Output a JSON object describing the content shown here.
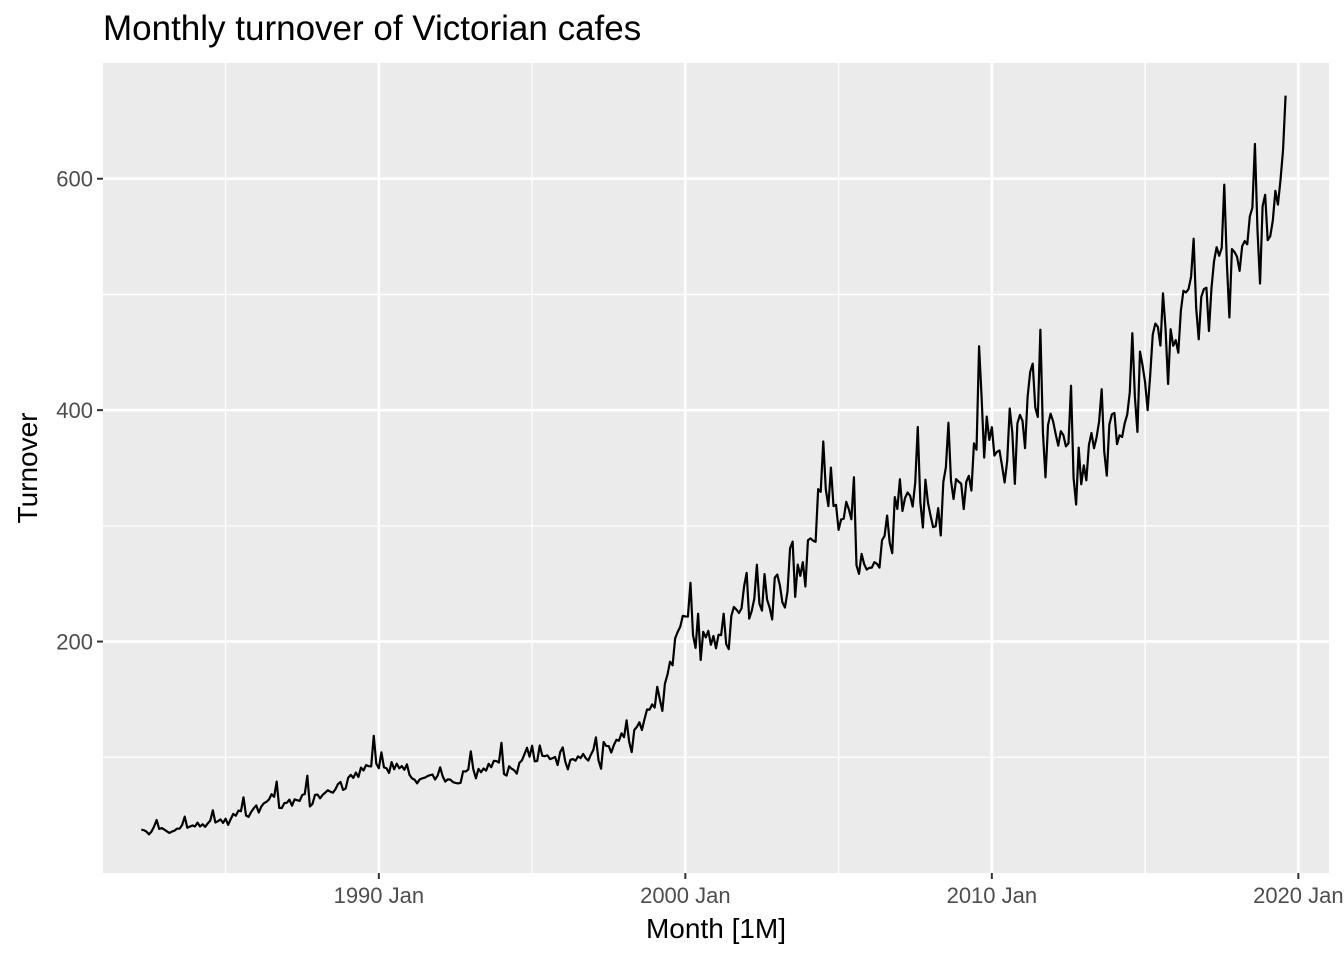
{
  "chart_data": {
    "type": "line",
    "title": "Monthly turnover of Victorian cafes",
    "xlabel": "Month [1M]",
    "ylabel": "Turnover",
    "x_start": "1982 Apr",
    "x_frequency": "monthly",
    "xlim": [
      "1981 Jan",
      "2021 Jan"
    ],
    "ylim": [
      0,
      700
    ],
    "x_ticks": [
      {
        "date": "1990 Jan",
        "label": "1990 Jan"
      },
      {
        "date": "2000 Jan",
        "label": "2000 Jan"
      },
      {
        "date": "2010 Jan",
        "label": "2010 Jan"
      },
      {
        "date": "2020 Jan",
        "label": "2020 Jan"
      }
    ],
    "x_minor_ticks": [
      "1985 Jan",
      "1995 Jan",
      "2005 Jan",
      "2015 Jan"
    ],
    "y_ticks": [
      200,
      400,
      600
    ],
    "y_minor_ticks": [
      100,
      300,
      500
    ],
    "grid": true,
    "background": "#ebebeb",
    "line_color": "#000000",
    "series": [
      {
        "values": [
          37.4,
          37,
          35.8,
          33.4,
          35.9,
          40.2,
          45.8,
          38.1,
          38.8,
          37.6,
          36,
          34.6,
          35.8,
          36.6,
          38.3,
          38.4,
          41.6,
          48.7,
          39.1,
          40.1,
          41.1,
          40.2,
          43.5,
          40.2,
          42.1,
          39.9,
          42.8,
          45.3,
          54.2,
          43.6,
          44.8,
          46.3,
          43.3,
          46.9,
          41.6,
          46.6,
          51.1,
          49.5,
          53.9,
          53.4,
          65.4,
          49.7,
          48.5,
          52.7,
          55.9,
          58.4,
          52.3,
          57.5,
          60.3,
          61.5,
          63.6,
          68.1,
          65.8,
          79,
          56.3,
          56.1,
          60.4,
          60.8,
          63.4,
          58.2,
          63.6,
          62.9,
          62.3,
          67.4,
          68.2,
          84.1,
          57.5,
          59.7,
          67.5,
          67.8,
          64.5,
          67.5,
          69.4,
          71.5,
          70.3,
          69.4,
          72.4,
          76.8,
          78.7,
          71.8,
          73,
          82.3,
          84.8,
          82.2,
          86.8,
          83,
          91.1,
          88.6,
          93.2,
          92.3,
          92.1,
          118.5,
          94.5,
          90.6,
          104.3,
          91.3,
          90.5,
          86.5,
          95.8,
          89.7,
          94.5,
          90.5,
          92.4,
          89.2,
          93.9,
          84.8,
          81.8,
          80.6,
          77.5,
          80.9,
          81.8,
          82.4,
          83.7,
          84.5,
          85.1,
          80.8,
          84.1,
          91.3,
          83.6,
          79,
          80.9,
          80.7,
          78.6,
          77.8,
          77.4,
          77.9,
          87.9,
          87.7,
          89.3,
          105.1,
          89.5,
          81.8,
          90,
          87.1,
          90.3,
          88.5,
          94.4,
          91.4,
          96.9,
          96.7,
          95.4,
          112.5,
          85.5,
          84.2,
          92.2,
          90.1,
          88.7,
          85.9,
          95.1,
          97.3,
          102.6,
          108.2,
          100.5,
          110,
          96.6,
          96.8,
          110.2,
          101.2,
          101,
          101.7,
          98.4,
          99.2,
          100.3,
          93.3,
          104.5,
          108.5,
          96.2,
          89.6,
          97.8,
          98.5,
          97.1,
          100.8,
          99.3,
          102.9,
          99.2,
          97.1,
          102.2,
          106.5,
          117.2,
          97.4,
          90.1,
          113.2,
          109.8,
          109.7,
          104.1,
          110.5,
          115.1,
          114.3,
          120.7,
          117.4,
          131.9,
          113.4,
          104.5,
          123.5,
          126.2,
          130.3,
          123.6,
          132.9,
          141.3,
          141.2,
          145.7,
          143,
          160.9,
          150.1,
          140.1,
          163.6,
          171.4,
          182.6,
          179.5,
          202.7,
          208.4,
          212.8,
          222.2,
          221.7,
          221.6,
          250.8,
          205.6,
          194.5,
          224.1,
          184.1,
          208.4,
          203.6,
          209.2,
          197.2,
          204.9,
          194.2,
          205.9,
          205.5,
          224.1,
          197.8,
          193.5,
          222.1,
          229.9,
          227.6,
          224.7,
          228.7,
          247.8,
          259.4,
          219.8,
          226.6,
          237.1,
          266.4,
          232.8,
          226.8,
          258.3,
          236.3,
          229.3,
          219.1,
          255.2,
          257.9,
          248.7,
          233.8,
          229.4,
          243.3,
          280.6,
          286.4,
          238.6,
          266.5,
          256.8,
          268.7,
          247.6,
          287.6,
          289.2,
          287.2,
          286.2,
          331.8,
          329.4,
          372.9,
          331.4,
          317.1,
          350.3,
          317.1,
          318.1,
          296.5,
          305.6,
          306.2,
          320.7,
          314.4,
          305.7,
          342,
          265.9,
          258.5,
          275.8,
          267,
          262.2,
          263.7,
          263.9,
          268.6,
          267.2,
          263.9,
          287.6,
          291.3,
          308.9,
          285.6,
          276.4,
          324.8,
          314.6,
          340.3,
          312.8,
          324,
          328.8,
          326.1,
          316.7,
          337.4,
          385.5,
          320.5,
          298.6,
          339.9,
          319.9,
          308.8,
          298.9,
          299.6,
          315.3,
          291.7,
          337.9,
          350.5,
          389.1,
          339.1,
          323.2,
          340.4,
          338.2,
          336.4,
          314.5,
          338.2,
          343.2,
          330.5,
          371.3,
          365.8,
          455.2,
          410.6,
          359,
          394.4,
          374.3,
          385.3,
          360.8,
          364,
          365.1,
          351.8,
          337.5,
          355.9,
          401.4,
          380.8,
          336.3,
          388.6,
          395.9,
          390.8,
          367.2,
          411.4,
          432.9,
          440.2,
          402.2,
          394.1,
          469.5,
          380.6,
          341.9,
          387.3,
          396.9,
          390.2,
          379.2,
          369.3,
          381.8,
          378.4,
          368.7,
          371.3,
          421.1,
          341.3,
          318.4,
          367.6,
          335.9,
          352.3,
          339.4,
          369.8,
          380.3,
          367.1,
          376.5,
          390.3,
          418.1,
          364.3,
          343.4,
          387.5,
          396.4,
          397.5,
          370.6,
          378.3,
          376.8,
          388.5,
          396.2,
          415.4,
          466.5,
          411.5,
          381.2,
          450.6,
          438.6,
          424,
          400,
          430.4,
          465.4,
          474.8,
          471.9,
          455.8,
          500.9,
          470.6,
          422.6,
          469.9,
          455.6,
          460.5,
          449.6,
          485.8,
          503.2,
          501.7,
          504.6,
          515.2,
          548.1,
          488.1,
          461.2,
          497.8,
          504.6,
          505.8,
          468.4,
          505.8,
          528.9,
          540.8,
          533.4,
          540.2,
          594.8,
          527.9,
          480.1,
          539.2,
          536.7,
          532.5,
          520.3,
          541.7,
          546.1,
          543.3,
          567.3,
          575,
          630,
          555.7,
          509.4,
          576.1,
          586.1,
          546.9,
          550.3,
          563.8,
          589.5,
          577.6,
          598.7,
          624.6,
          671.8
        ]
      }
    ]
  }
}
